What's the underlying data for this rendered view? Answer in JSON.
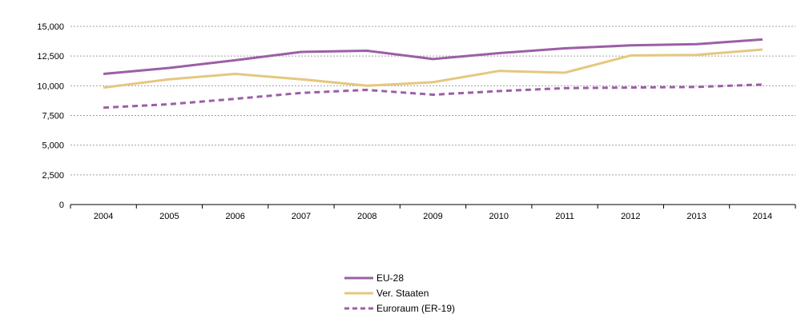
{
  "chart_data": {
    "type": "line",
    "x": [
      "2004",
      "2005",
      "2006",
      "2007",
      "2008",
      "2009",
      "2010",
      "2011",
      "2012",
      "2013",
      "2014"
    ],
    "yticks": [
      "0",
      "2,500",
      "5,000",
      "7,500",
      "10,000",
      "12,500",
      "15,000"
    ],
    "ylim": [
      0,
      15000
    ],
    "grid": true,
    "legend_position": "bottom",
    "series": [
      {
        "name": "EU-28",
        "color": "#9b5fa5",
        "style": "solid",
        "values": [
          11000,
          11500,
          12150,
          12850,
          12950,
          12250,
          12750,
          13150,
          13400,
          13500,
          13900
        ]
      },
      {
        "name": "Ver. Staaten",
        "color": "#e5c77f",
        "style": "solid",
        "values": [
          9850,
          10550,
          11000,
          10550,
          10000,
          10300,
          11250,
          11100,
          12550,
          12600,
          13050
        ]
      },
      {
        "name": "Euroraum (ER-19)",
        "color": "#9b5fa5",
        "style": "dashed",
        "values": [
          8150,
          8450,
          8900,
          9400,
          9650,
          9250,
          9550,
          9800,
          9850,
          9900,
          10100
        ]
      }
    ]
  }
}
